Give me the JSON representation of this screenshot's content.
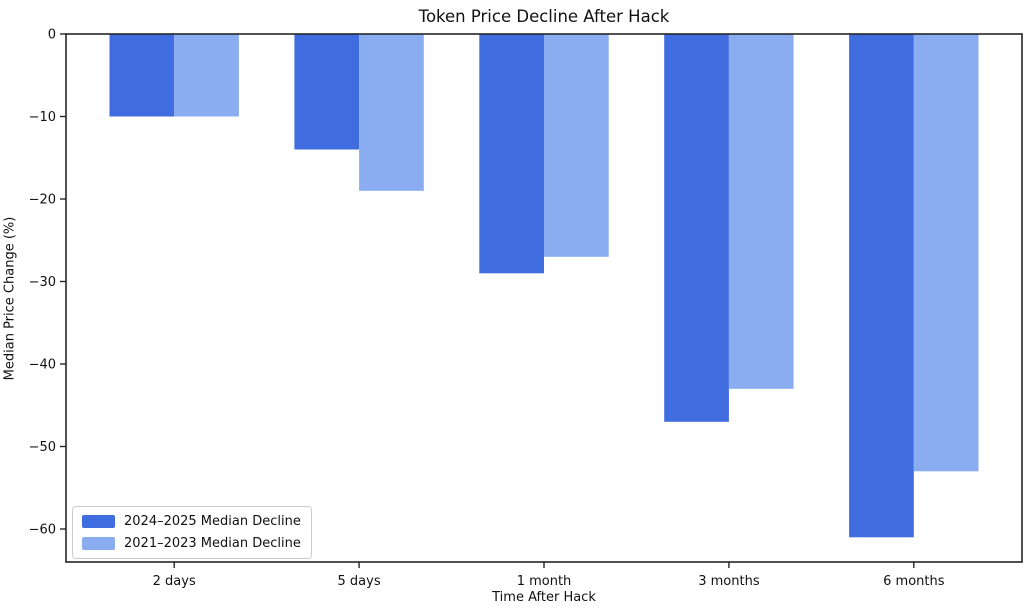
{
  "chart_data": {
    "type": "bar",
    "title": "Token Price Decline After Hack",
    "xlabel": "Time After Hack",
    "ylabel": "Median Price Change (%)",
    "categories": [
      "2 days",
      "5 days",
      "1 month",
      "3 months",
      "6 months"
    ],
    "series": [
      {
        "name": "2024–2025 Median Decline",
        "color": "#3F6CDF",
        "values": [
          -10,
          -14,
          -29,
          -47,
          -61
        ]
      },
      {
        "name": "2021–2023 Median Decline",
        "color": "#8AACF1",
        "values": [
          -10,
          -19,
          -27,
          -43,
          -53
        ]
      }
    ],
    "ylim": [
      -64,
      0
    ],
    "yticks": [
      0,
      -10,
      -20,
      -30,
      -40,
      -50,
      -60
    ],
    "ytick_labels": [
      "0",
      "−10",
      "−20",
      "−30",
      "−40",
      "−50",
      "−60"
    ],
    "bar_group_width": 0.7,
    "xlim": [
      -0.585,
      4.585
    ],
    "legend_position": "lower left",
    "grid": false,
    "colors": {
      "spine": "#262626",
      "tick_text": "#111111",
      "background": "#ffffff"
    }
  }
}
